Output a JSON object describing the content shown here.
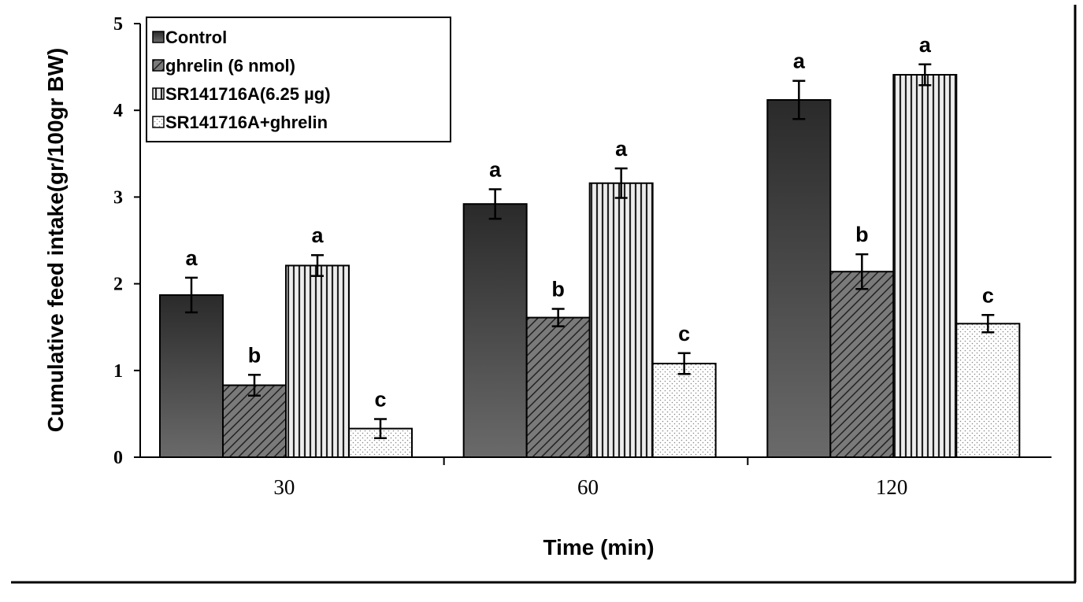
{
  "chart_data": {
    "type": "bar",
    "title": "",
    "xlabel": "Time (min)",
    "ylabel": "Cumulative feed intake(gr/100gr BW)",
    "categories": [
      "30",
      "60",
      "120"
    ],
    "ylim": [
      0,
      5
    ],
    "yticks": [
      "0",
      "1",
      "2",
      "3",
      "4",
      "5"
    ],
    "grid": false,
    "legend_position": "top-left",
    "series": [
      {
        "name": "Control",
        "values": [
          1.87,
          2.92,
          4.12
        ],
        "errors": [
          0.2,
          0.17,
          0.22
        ],
        "labels": [
          "a",
          "a",
          "a"
        ],
        "color": "#3a3a3a",
        "pattern": "solid"
      },
      {
        "name": "ghrelin (6 nmol)",
        "values": [
          0.83,
          1.61,
          2.14
        ],
        "errors": [
          0.12,
          0.1,
          0.2
        ],
        "labels": [
          "b",
          "b",
          "b"
        ],
        "color": "#606060",
        "pattern": "diagonal"
      },
      {
        "name": "SR141716A(6.25 µg)",
        "values": [
          2.21,
          3.16,
          4.41
        ],
        "errors": [
          0.12,
          0.17,
          0.12
        ],
        "labels": [
          "a",
          "a",
          "a"
        ],
        "color": "#d8d8d8",
        "pattern": "vertical"
      },
      {
        "name": "SR141716A+ghrelin",
        "values": [
          0.33,
          1.08,
          1.54
        ],
        "errors": [
          0.11,
          0.12,
          0.1
        ],
        "labels": [
          "c",
          "c",
          "c"
        ],
        "color": "#ffffff",
        "pattern": "dots"
      }
    ]
  }
}
